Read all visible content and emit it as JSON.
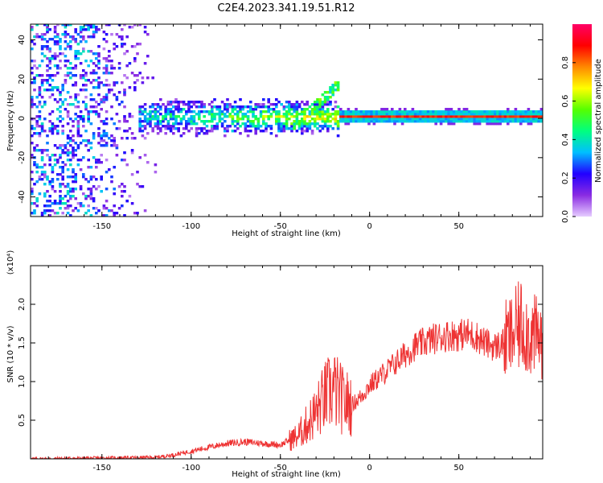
{
  "title": "C2E4.2023.341.19.51.R12",
  "chart_data": [
    {
      "type": "heatmap",
      "xlabel": "Height of straight line (km)",
      "ylabel": "Frequency (Hz)",
      "xlim": [
        -190,
        97
      ],
      "ylim": [
        -50,
        48
      ],
      "xticks": [
        -150,
        -100,
        -50,
        0,
        50
      ],
      "yticks": [
        -40,
        -20,
        0,
        20,
        40
      ],
      "colorbar": {
        "label": "Normalized spectral amplitude",
        "range": [
          0.0,
          1.0
        ],
        "ticks": [
          0.0,
          0.2,
          0.4,
          0.6,
          0.8
        ],
        "colors": [
          "#e6ccff",
          "#8a2be2",
          "#2200ff",
          "#00bfff",
          "#00ff7f",
          "#55ff00",
          "#ffff00",
          "#ff8800",
          "#ff0000",
          "#ff0066"
        ]
      },
      "features": {
        "noise_region_x": [
          -190,
          -120
        ],
        "noise_amplitude": 0.25,
        "band_center_hz": 0,
        "band_x": [
          -130,
          -18
        ],
        "rising_branch_x": [
          -45,
          -17
        ],
        "rising_branch_hz": [
          -5,
          17
        ],
        "strong_line_x": [
          -17,
          97
        ],
        "strong_line_hz": 0.5,
        "strong_line_amplitude": 0.9
      }
    },
    {
      "type": "line",
      "xlabel": "Height of straight line (km)",
      "ylabel": "SNR (10 * v/v)",
      "yscale_note": "(x10⁴)",
      "xlim": [
        -190,
        97
      ],
      "ylim": [
        0,
        2.5
      ],
      "xticks": [
        -150,
        -100,
        -50,
        0,
        50
      ],
      "yticks": [
        0.5,
        1.0,
        1.5,
        2.0
      ],
      "color": "#ee3333",
      "series": [
        {
          "name": "SNR",
          "x": [
            -190,
            -120,
            -110,
            -100,
            -90,
            -80,
            -70,
            -60,
            -50,
            -40,
            -35,
            -30,
            -25,
            -20,
            -15,
            -10,
            -5,
            0,
            5,
            10,
            15,
            20,
            25,
            30,
            35,
            40,
            45,
            50,
            55,
            60,
            65,
            70,
            75,
            80,
            85,
            90,
            97
          ],
          "y": [
            0.0,
            0.02,
            0.05,
            0.1,
            0.15,
            0.2,
            0.22,
            0.2,
            0.18,
            0.3,
            0.45,
            0.6,
            0.8,
            0.9,
            0.75,
            0.7,
            0.8,
            0.95,
            1.05,
            1.15,
            1.25,
            1.35,
            1.45,
            1.5,
            1.55,
            1.58,
            1.6,
            1.6,
            1.62,
            1.58,
            1.5,
            1.45,
            1.5,
            1.6,
            1.75,
            1.6,
            1.55
          ]
        }
      ]
    }
  ]
}
